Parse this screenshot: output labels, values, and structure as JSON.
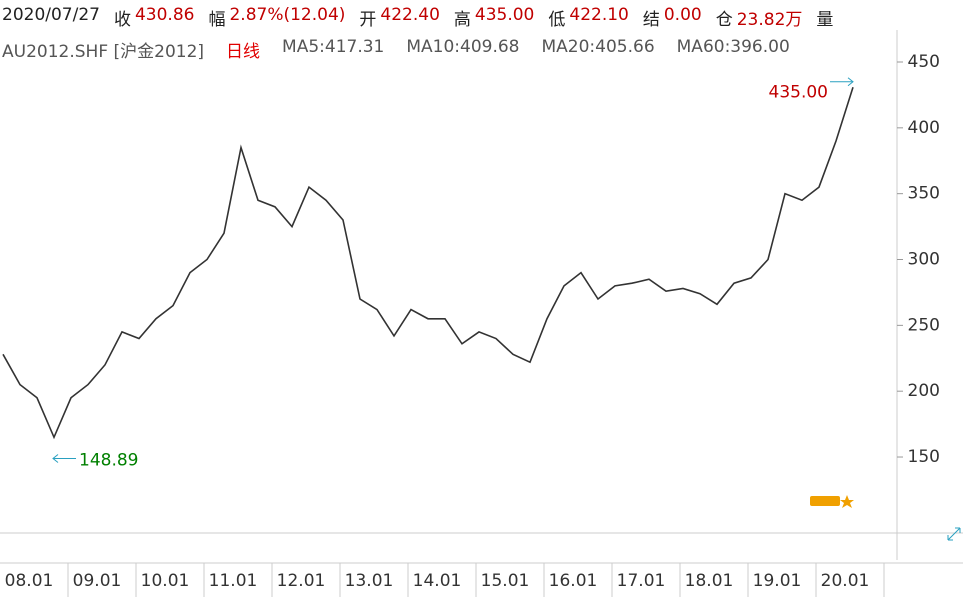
{
  "header": {
    "row1": [
      {
        "label": "2020/07/27"
      },
      {
        "label": "收",
        "value": "430.86"
      },
      {
        "label": "幅",
        "value": "2.87%(12.04)"
      },
      {
        "label": "开",
        "value": "422.40"
      },
      {
        "label": "高",
        "value": "435.00"
      },
      {
        "label": "低",
        "value": "422.10"
      },
      {
        "label": "结",
        "value": "0.00"
      },
      {
        "label": "仓",
        "value": "23.82万"
      },
      {
        "label": "量"
      }
    ],
    "row2": [
      {
        "label": "AU2012.SHF [沪金2012]"
      },
      {
        "label": "日线",
        "color": "#e00000"
      },
      {
        "label": "MA5:417.31"
      },
      {
        "label": "MA10:409.68"
      },
      {
        "label": "MA20:405.66"
      },
      {
        "label": "MA60:396.00"
      }
    ]
  },
  "chart_data": {
    "type": "line",
    "color": "#333333",
    "categories": [
      "08.01",
      null,
      null,
      null,
      "09.01",
      null,
      null,
      null,
      "10.01",
      null,
      null,
      null,
      "11.01",
      null,
      null,
      null,
      "12.01",
      null,
      null,
      null,
      "13.01",
      null,
      null,
      null,
      "14.01",
      null,
      null,
      null,
      "15.01",
      null,
      null,
      null,
      "16.01",
      null,
      null,
      null,
      "17.01",
      null,
      null,
      null,
      "18.01",
      null,
      null,
      null,
      "19.01",
      null,
      null,
      null,
      "20.01",
      null,
      null
    ],
    "values": [
      228,
      205,
      195,
      165,
      195,
      205,
      220,
      245,
      240,
      255,
      265,
      290,
      300,
      320,
      385,
      345,
      340,
      325,
      355,
      345,
      330,
      270,
      262,
      242,
      262,
      255,
      255,
      236,
      245,
      240,
      228,
      222,
      255,
      280,
      290,
      270,
      280,
      282,
      285,
      276,
      278,
      274,
      266,
      282,
      286,
      300,
      350,
      345,
      355,
      390,
      430.86
    ],
    "ylim": [
      92.3,
      470.5
    ],
    "yticks": [
      150,
      200,
      250,
      300,
      350,
      400,
      450
    ],
    "annotations": [
      {
        "text": "435.00",
        "value": 435,
        "color": "#c00000"
      },
      {
        "text": "148.89",
        "value": 148.89,
        "color": "#008000"
      }
    ]
  }
}
